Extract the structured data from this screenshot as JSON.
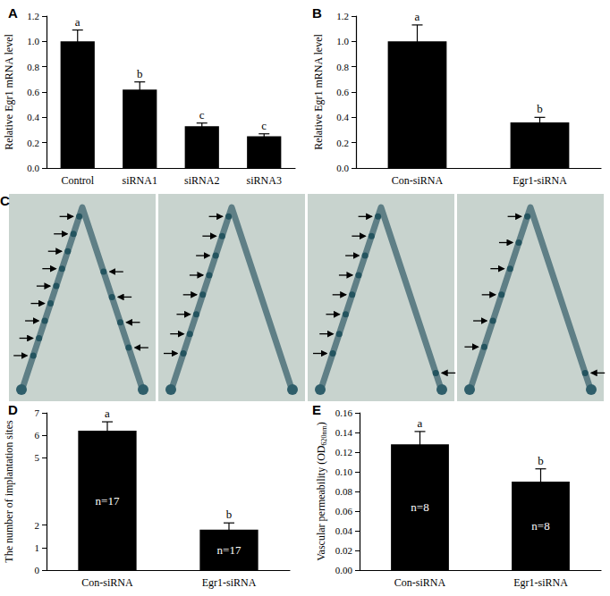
{
  "chart_data": [
    {
      "type": "bar",
      "title": "A",
      "categories": [
        "Control",
        "siRNA1",
        "siRNA2",
        "siRNA3"
      ],
      "values": [
        1.0,
        0.62,
        0.33,
        0.25
      ],
      "errors": [
        0.09,
        0.06,
        0.025,
        0.02
      ],
      "annotations": [
        "a",
        "b",
        "c",
        "c"
      ],
      "color": "#000000",
      "ylabel": "Relative Egr1 mRNA level",
      "ylim": [
        0,
        1.2
      ],
      "yticks": [
        {
          "value": 0,
          "label": "0.0"
        },
        0.2,
        0.4,
        0.6,
        0.8,
        {
          "value": 1,
          "label": "1.0"
        },
        1.2
      ],
      "grid": false
    },
    {
      "type": "bar",
      "title": "B",
      "categories": [
        "Con-siRNA",
        "Egr1-siRNA"
      ],
      "values": [
        1.0,
        0.36
      ],
      "errors": [
        0.13,
        0.04
      ],
      "annotations": [
        "a",
        "b"
      ],
      "color": "#000000",
      "ylabel": "Relative Egr1 mRNA level",
      "ylim": [
        0,
        1.2
      ],
      "yticks": [
        {
          "value": 0,
          "label": "0.0"
        },
        0.2,
        0.4,
        0.6,
        0.8,
        {
          "value": 1,
          "label": "1.0"
        },
        1.2
      ],
      "grid": false
    },
    {
      "type": "bar",
      "title": "D",
      "categories": [
        "Con-siRNA",
        "Egr1-siRNA"
      ],
      "values": [
        6.2,
        1.8
      ],
      "errors": [
        0.4,
        0.3
      ],
      "annotations": [
        "a",
        "b"
      ],
      "bar_labels": [
        "n=17",
        "n=17"
      ],
      "color": "#000000",
      "ylabel": "The number of implantation sites",
      "ylim": [
        0,
        7
      ],
      "yticks": [
        0,
        1,
        2,
        5,
        6,
        7
      ],
      "grid": false
    },
    {
      "type": "bar",
      "title": "E",
      "categories": [
        "Con-siRNA",
        "Egr1-siRNA"
      ],
      "values": [
        0.128,
        0.09
      ],
      "errors": [
        0.013,
        0.013
      ],
      "annotations": [
        "a",
        "b"
      ],
      "bar_labels": [
        "n=8",
        "n=8"
      ],
      "color": "#000000",
      "ylabel": "Vascular permeability (OD620nm)",
      "ylabel_subscript": "620nm",
      "ylim": [
        0,
        0.16
      ],
      "yticks": [
        {
          "value": 0,
          "label": "0.00"
        },
        {
          "value": 0.02,
          "label": "0.02"
        },
        {
          "value": 0.04,
          "label": "0.04"
        },
        {
          "value": 0.06,
          "label": "0.06"
        },
        {
          "value": 0.08,
          "label": "0.08"
        },
        {
          "value": 0.1,
          "label": "0.10"
        },
        {
          "value": 0.12,
          "label": "0.12"
        },
        {
          "value": 0.14,
          "label": "0.14"
        },
        {
          "value": 0.16,
          "label": "0.16"
        }
      ],
      "grid": false
    }
  ],
  "photo": {
    "label": "C"
  }
}
